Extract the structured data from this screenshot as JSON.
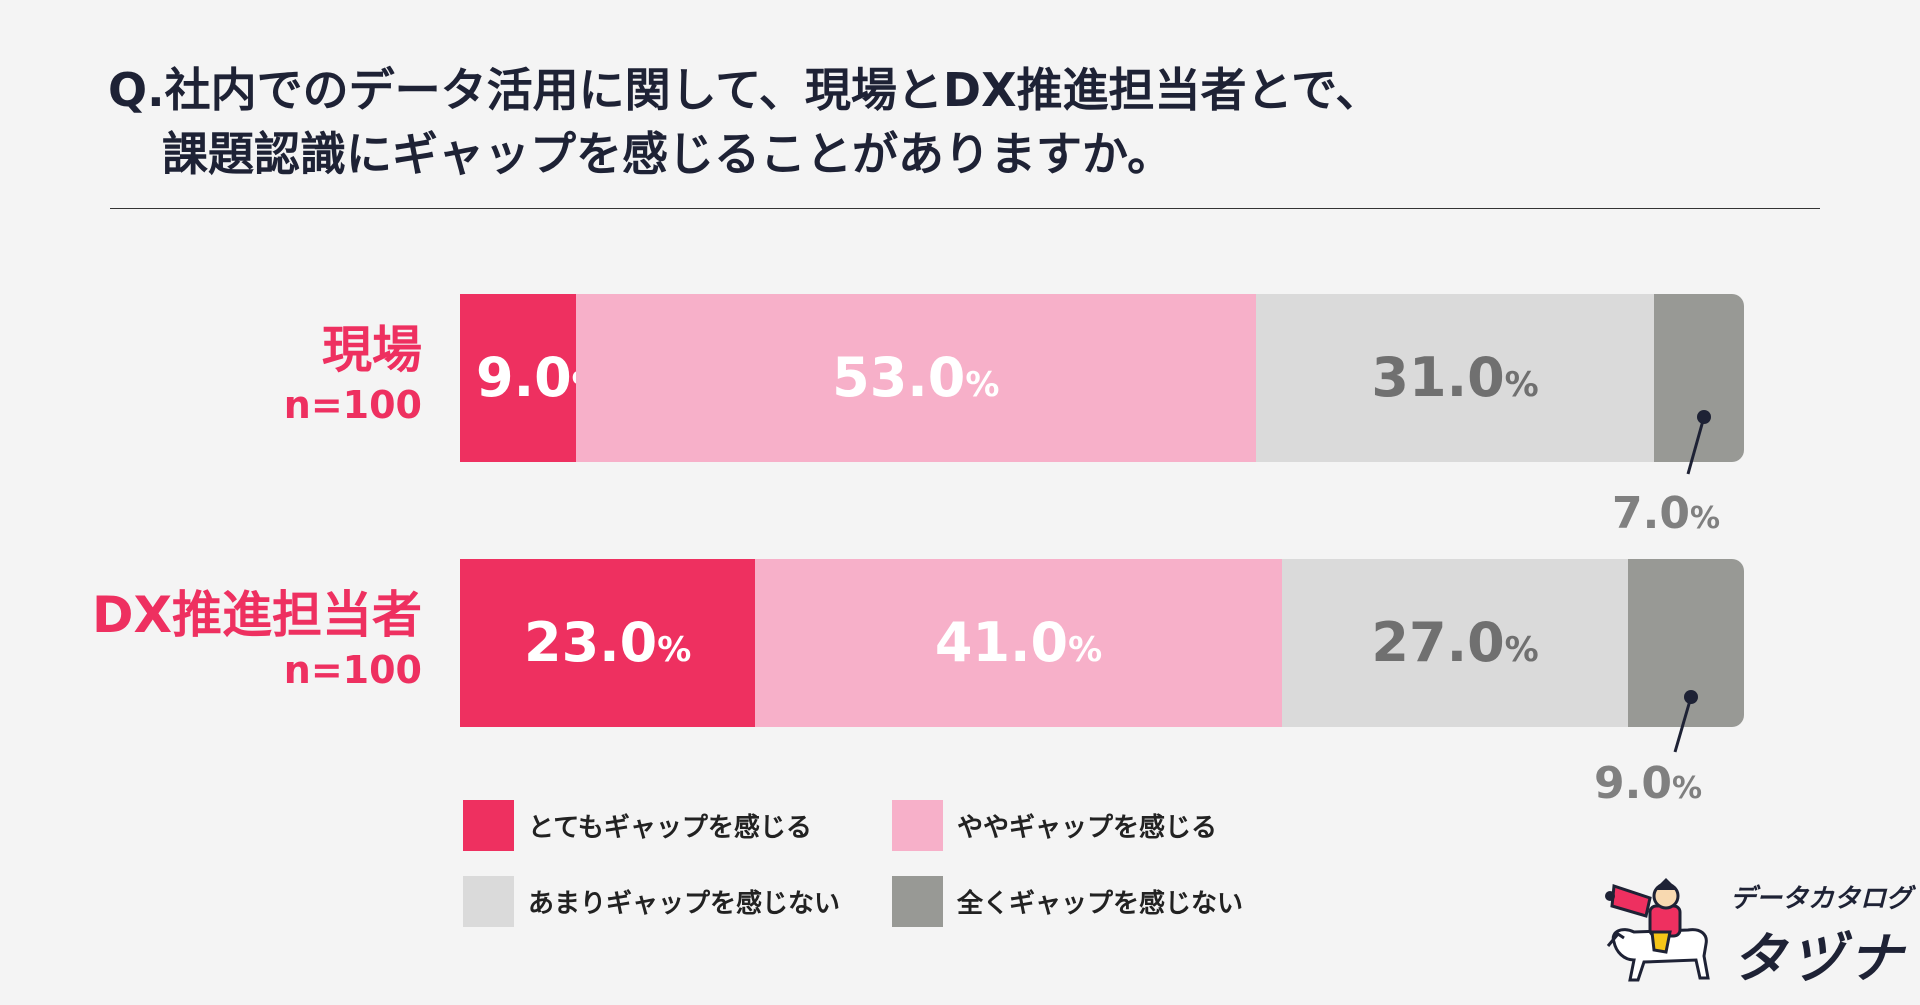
{
  "title": {
    "line1": "Q.社内でのデータ活用に関して、現場とDX推進担当者とで、",
    "line2": "課題認識にギャップを感じることがありますか。"
  },
  "chart_data": {
    "type": "bar",
    "orientation": "horizontal-stacked-100",
    "categories": [
      "現場",
      "DX推進担当者"
    ],
    "sample_sizes": [
      "n=100",
      "n=100"
    ],
    "series": [
      {
        "name": "とてもギャップを感じる",
        "color": "#ee3060",
        "values": [
          9.0,
          23.0
        ]
      },
      {
        "name": "ややギャップを感じる",
        "color": "#f7b0c9",
        "values": [
          53.0,
          41.0
        ]
      },
      {
        "name": "あまりギャップを感じない",
        "color": "#dadada",
        "values": [
          31.0,
          27.0
        ]
      },
      {
        "name": "全くギャップを感じない",
        "color": "#989995",
        "values": [
          7.0,
          9.0
        ]
      }
    ],
    "rows": [
      {
        "label": "現場",
        "n": "n=100",
        "segments": [
          {
            "num": "9.0",
            "pct": "%",
            "value": 9.0
          },
          {
            "num": "53.0",
            "pct": "%",
            "value": 53.0
          },
          {
            "num": "31.0",
            "pct": "%",
            "value": 31.0
          },
          {
            "num": "7.0",
            "pct": "%",
            "value": 7.0
          }
        ]
      },
      {
        "label": "DX推進担当者",
        "n": "n=100",
        "segments": [
          {
            "num": "23.0",
            "pct": "%",
            "value": 23.0
          },
          {
            "num": "41.0",
            "pct": "%",
            "value": 41.0
          },
          {
            "num": "27.0",
            "pct": "%",
            "value": 27.0
          },
          {
            "num": "9.0",
            "pct": "%",
            "value": 9.0
          }
        ]
      }
    ],
    "xlim": [
      0,
      100
    ],
    "legend_position": "bottom-left"
  },
  "legend": [
    {
      "label": "とてもギャップを感じる",
      "color": "#ee3060"
    },
    {
      "label": "ややギャップを感じる",
      "color": "#f7b0c9"
    },
    {
      "label": "あまりギャップを感じない",
      "color": "#dadada"
    },
    {
      "label": "全くギャップを感じない",
      "color": "#989995"
    }
  ],
  "brand": {
    "sub": "データカタログ",
    "main": "タヅナ",
    "mascot": "mascot-rider-icon"
  }
}
